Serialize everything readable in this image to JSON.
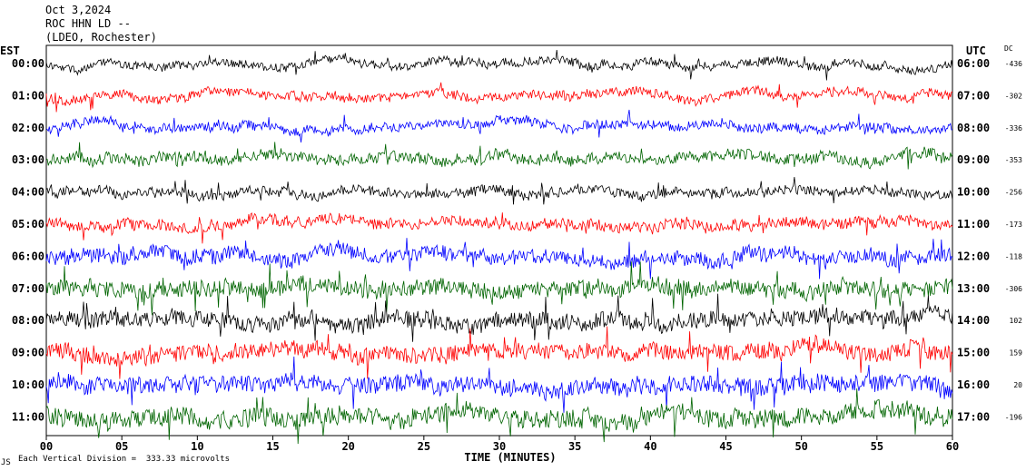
{
  "header": {
    "date": "Oct 3,2024",
    "station": "ROC HHN LD --",
    "network": "(LDEO, Rochester)"
  },
  "left_axis_title": "EST",
  "right_axis_title": "UTC",
  "dc_title": "DC",
  "footer": {
    "scale_note": "Each Vertical Division =  333.33 microvolts",
    "mark": "JS"
  },
  "chart_data": {
    "type": "line",
    "xlabel": "TIME (MINUTES)",
    "xlim": [
      0,
      60
    ],
    "x_ticks": [
      "00",
      "05",
      "10",
      "15",
      "20",
      "25",
      "30",
      "35",
      "40",
      "45",
      "50",
      "55",
      "60"
    ],
    "trace_colors": [
      "#000000",
      "#ff0000",
      "#0000ff",
      "#006400"
    ],
    "rows": [
      {
        "est": "00:00",
        "utc": "06:00",
        "dc": "-436",
        "amp": 0.9
      },
      {
        "est": "01:00",
        "utc": "07:00",
        "dc": "-302",
        "amp": 1.0
      },
      {
        "est": "02:00",
        "utc": "08:00",
        "dc": "-336",
        "amp": 1.0
      },
      {
        "est": "03:00",
        "utc": "09:00",
        "dc": "-353",
        "amp": 1.2
      },
      {
        "est": "04:00",
        "utc": "10:00",
        "dc": "-256",
        "amp": 1.0
      },
      {
        "est": "05:00",
        "utc": "11:00",
        "dc": "-173",
        "amp": 1.2
      },
      {
        "est": "06:00",
        "utc": "12:00",
        "dc": "-118",
        "amp": 1.6
      },
      {
        "est": "07:00",
        "utc": "13:00",
        "dc": "-306",
        "amp": 1.8
      },
      {
        "est": "08:00",
        "utc": "14:00",
        "dc": "102",
        "amp": 1.8
      },
      {
        "est": "09:00",
        "utc": "15:00",
        "dc": "159",
        "amp": 1.8
      },
      {
        "est": "10:00",
        "utc": "16:00",
        "dc": "20",
        "amp": 1.9
      },
      {
        "est": "11:00",
        "utc": "17:00",
        "dc": "-196",
        "amp": 2.0
      }
    ]
  }
}
